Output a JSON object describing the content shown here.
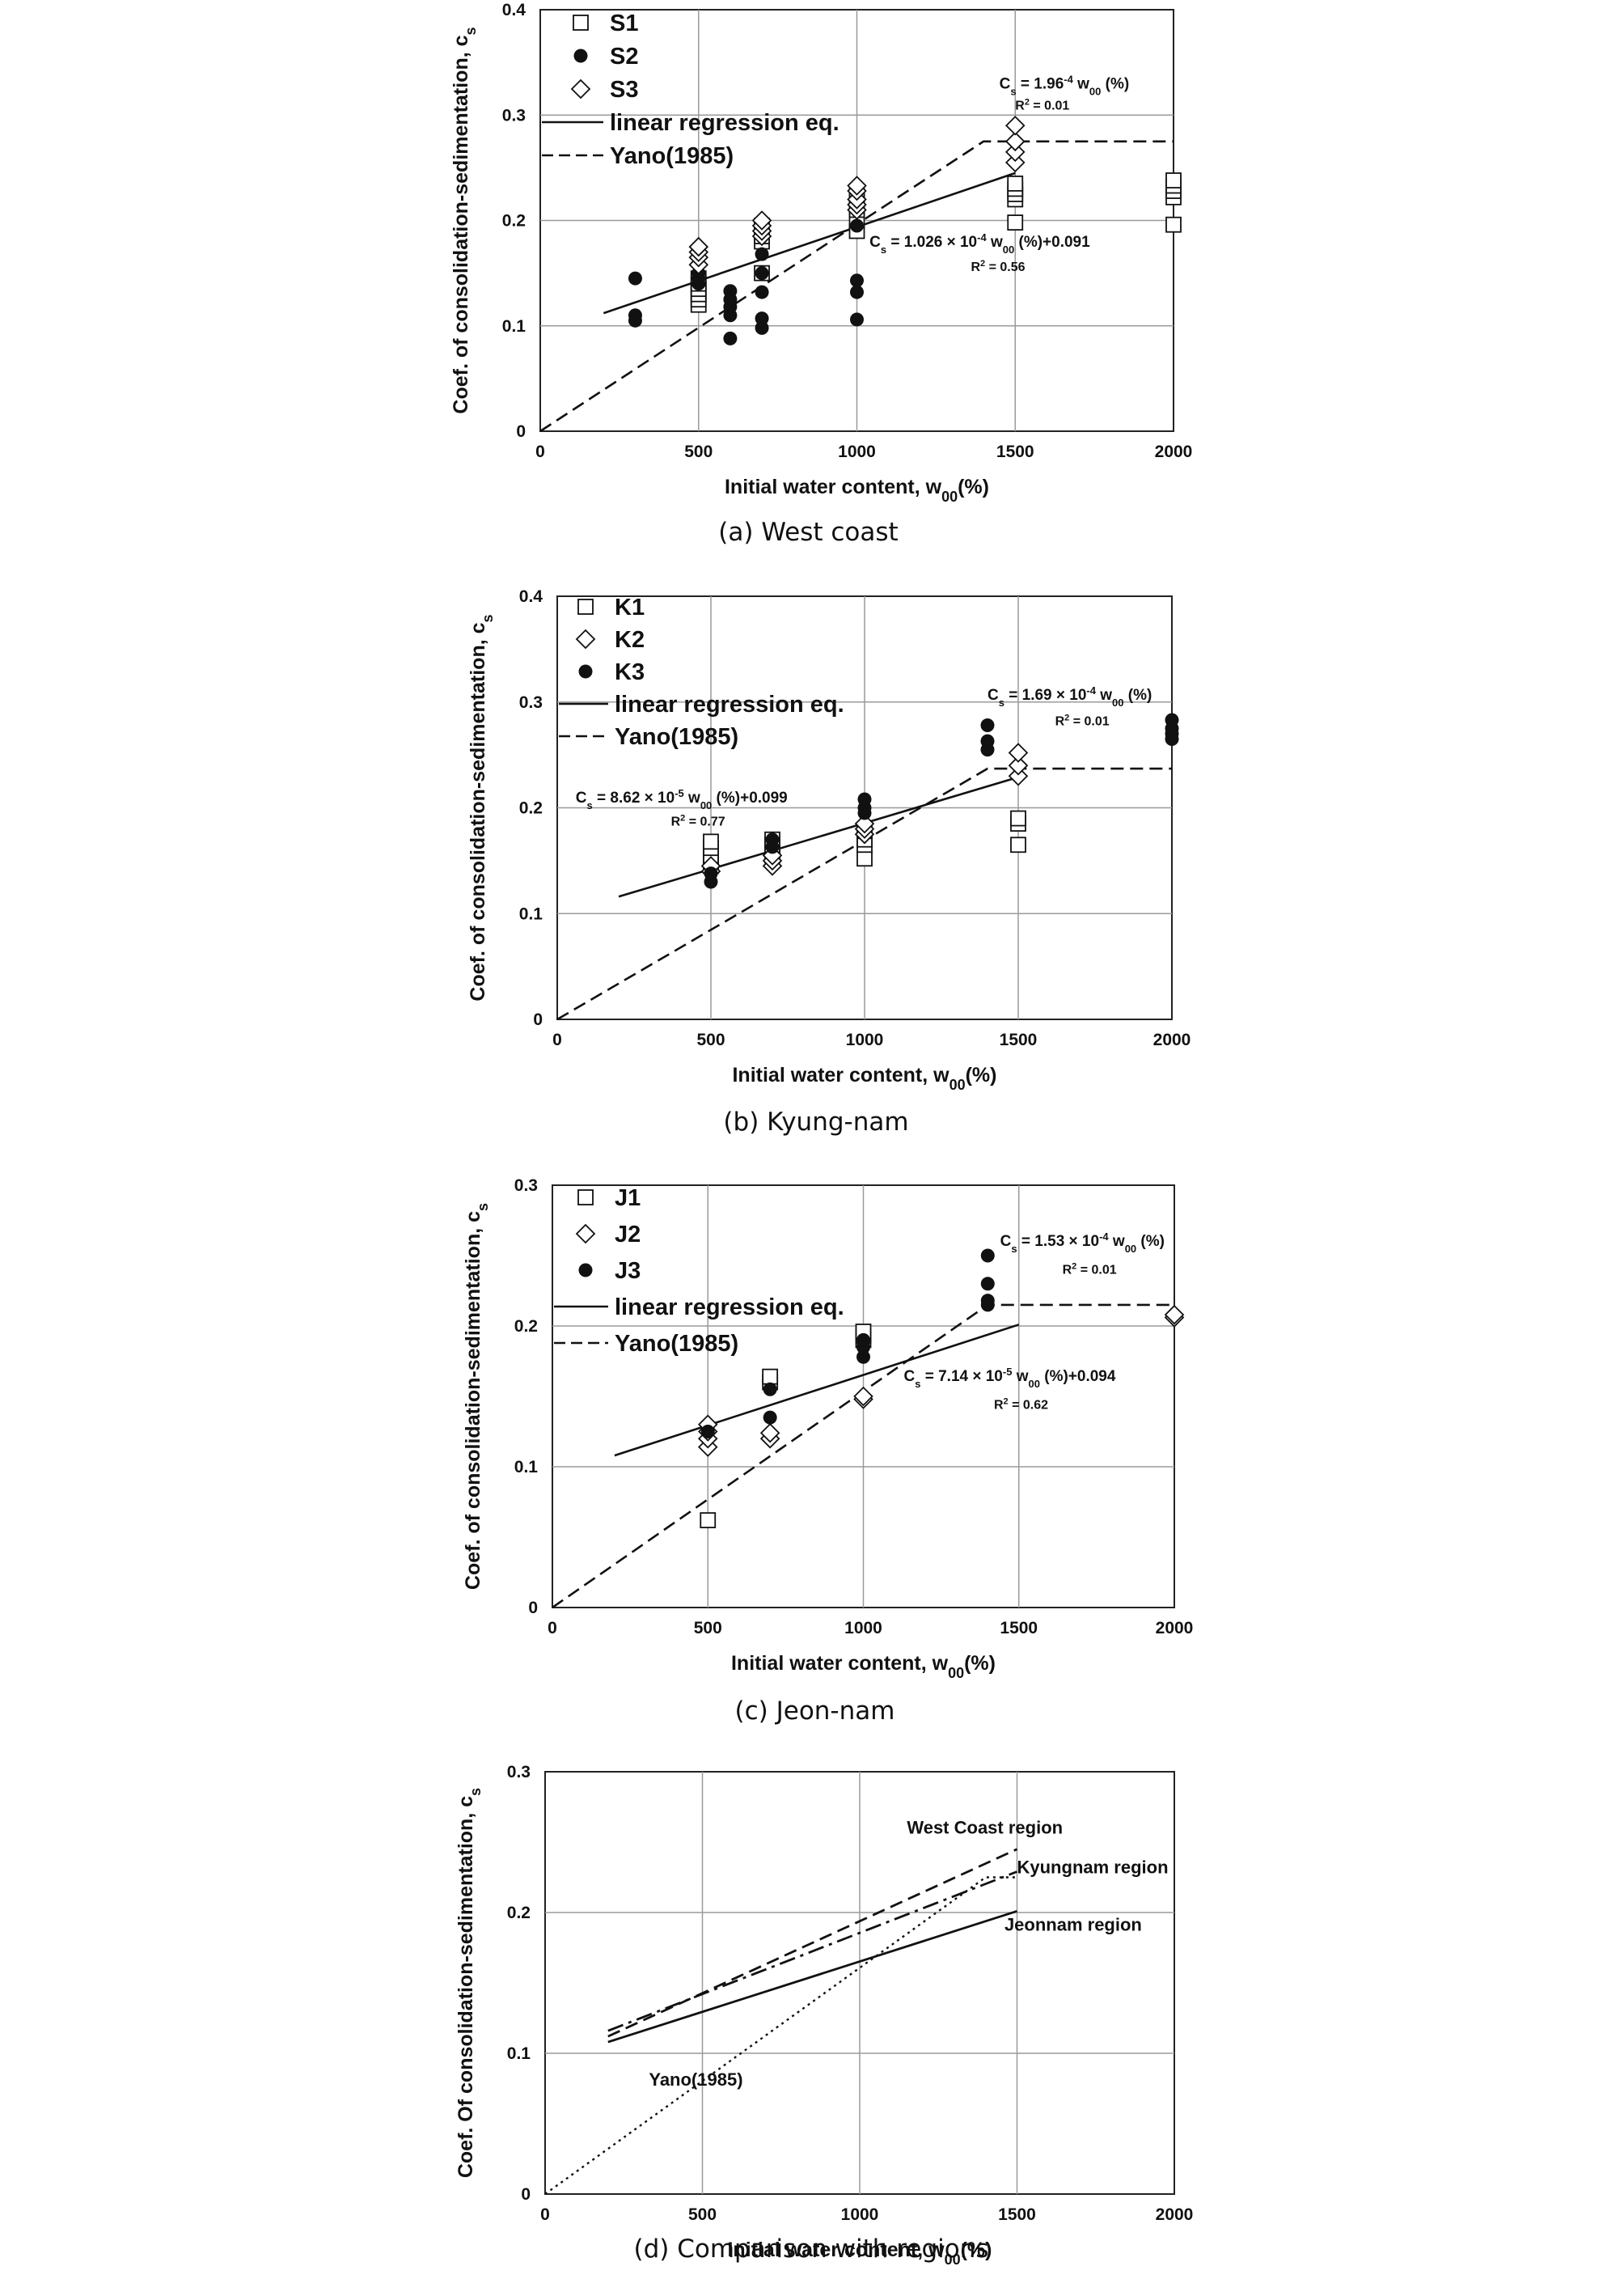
{
  "chart_data": [
    {
      "type": "scatter",
      "caption": "(a) West coast",
      "xlabel": "Initial water content, w",
      "xlabel_sub": "00",
      "xlabel_tail": "(%)",
      "ylabel": "Coef. of consolidation-sedimentation, c",
      "ylabel_sub": "s",
      "xlim": [
        0,
        2000
      ],
      "ylim": [
        0,
        0.4
      ],
      "xticks": [
        "0",
        "500",
        "1000",
        "1500",
        "2000"
      ],
      "yticks": [
        "0",
        "0.1",
        "0.2",
        "0.3",
        "0.4"
      ],
      "grid": true,
      "legend_position": "top-left",
      "legend": [
        {
          "label": "S1",
          "marker": "square"
        },
        {
          "label": "S2",
          "marker": "circle"
        },
        {
          "label": "S3",
          "marker": "diamond"
        },
        {
          "label": "linear regression eq.",
          "marker": "solid-line"
        },
        {
          "label": "Yano(1985)",
          "marker": "dashed-line"
        }
      ],
      "series": [
        {
          "name": "S1",
          "marker": "square",
          "points": [
            [
              500,
              0.12
            ],
            [
              500,
              0.125
            ],
            [
              500,
              0.13
            ],
            [
              500,
              0.135
            ],
            [
              500,
              0.14
            ],
            [
              500,
              0.145
            ],
            [
              700,
              0.15
            ],
            [
              700,
              0.18
            ],
            [
              700,
              0.185
            ],
            [
              700,
              0.19
            ],
            [
              700,
              0.195
            ],
            [
              1000,
              0.19
            ],
            [
              1000,
              0.2
            ],
            [
              1000,
              0.21
            ],
            [
              1000,
              0.22
            ],
            [
              1000,
              0.225
            ],
            [
              1500,
              0.198
            ],
            [
              1500,
              0.22
            ],
            [
              1500,
              0.225
            ],
            [
              1500,
              0.23
            ],
            [
              1500,
              0.235
            ],
            [
              2000,
              0.196
            ],
            [
              2000,
              0.222
            ],
            [
              2000,
              0.228
            ],
            [
              2000,
              0.233
            ],
            [
              2000,
              0.238
            ]
          ]
        },
        {
          "name": "S2",
          "marker": "circle",
          "points": [
            [
              300,
              0.145
            ],
            [
              300,
              0.11
            ],
            [
              300,
              0.105
            ],
            [
              500,
              0.15
            ],
            [
              500,
              0.145
            ],
            [
              500,
              0.14
            ],
            [
              600,
              0.133
            ],
            [
              600,
              0.125
            ],
            [
              600,
              0.118
            ],
            [
              600,
              0.11
            ],
            [
              600,
              0.088
            ],
            [
              700,
              0.168
            ],
            [
              700,
              0.15
            ],
            [
              700,
              0.132
            ],
            [
              700,
              0.107
            ],
            [
              700,
              0.098
            ],
            [
              1000,
              0.195
            ],
            [
              1000,
              0.143
            ],
            [
              1000,
              0.132
            ],
            [
              1000,
              0.106
            ]
          ]
        },
        {
          "name": "S3",
          "marker": "diamond",
          "points": [
            [
              500,
              0.158
            ],
            [
              500,
              0.165
            ],
            [
              500,
              0.17
            ],
            [
              500,
              0.175
            ],
            [
              700,
              0.185
            ],
            [
              700,
              0.19
            ],
            [
              700,
              0.195
            ],
            [
              700,
              0.2
            ],
            [
              1000,
              0.21
            ],
            [
              1000,
              0.215
            ],
            [
              1000,
              0.22
            ],
            [
              1000,
              0.228
            ],
            [
              1000,
              0.233
            ],
            [
              1500,
              0.255
            ],
            [
              1500,
              0.265
            ],
            [
              1500,
              0.275
            ],
            [
              1500,
              0.29
            ]
          ]
        }
      ],
      "lines": [
        {
          "name": "linear regression eq.",
          "style": "solid",
          "points": [
            [
              200,
              0.112
            ],
            [
              1500,
              0.245
            ]
          ]
        },
        {
          "name": "Yano(1985)",
          "style": "dashed",
          "points": [
            [
              0,
              0
            ],
            [
              1400,
              0.275
            ],
            [
              2000,
              0.275
            ]
          ]
        }
      ],
      "annotations": [
        {
          "text": "C",
          "sub": "s",
          "tail": " = 1.96",
          "sup": "-4",
          "tail2": " w",
          "sub2": "00",
          "tail3": " (%)",
          "x": 1450,
          "y": 0.325
        },
        {
          "text": "R",
          "sup": "2",
          "tail": " = 0.01",
          "x": 1500,
          "y": 0.305
        },
        {
          "text": "C",
          "sub": "s",
          "tail": " = 1.026 × 10",
          "sup": "-4",
          "tail2": " w",
          "sub2": "00",
          "tail3": " (%)+0.091",
          "x": 1040,
          "y": 0.175
        },
        {
          "text": "R",
          "sup": "2",
          "tail": " = 0.56",
          "x": 1360,
          "y": 0.152
        }
      ]
    },
    {
      "type": "scatter",
      "caption": "(b) Kyung-nam",
      "xlabel": "Initial water content, w",
      "xlabel_sub": "00",
      "xlabel_tail": "(%)",
      "ylabel": "Coef. of consolidation-sedimentation, c",
      "ylabel_sub": "s",
      "xlim": [
        0,
        2000
      ],
      "ylim": [
        0,
        0.4
      ],
      "xticks": [
        "0",
        "500",
        "1000",
        "1500",
        "2000"
      ],
      "yticks": [
        "0",
        "0.1",
        "0.2",
        "0.3",
        "0.4"
      ],
      "grid": true,
      "legend_position": "top-left",
      "legend": [
        {
          "label": "K1",
          "marker": "square"
        },
        {
          "label": "K2",
          "marker": "diamond"
        },
        {
          "label": "K3",
          "marker": "circle"
        },
        {
          "label": "linear regression eq.",
          "marker": "solid-line"
        },
        {
          "label": "Yano(1985)",
          "marker": "dashed-line"
        }
      ],
      "series": [
        {
          "name": "K1",
          "marker": "square",
          "points": [
            [
              500,
              0.145
            ],
            [
              500,
              0.15
            ],
            [
              500,
              0.155
            ],
            [
              500,
              0.162
            ],
            [
              500,
              0.168
            ],
            [
              700,
              0.155
            ],
            [
              700,
              0.16
            ],
            [
              700,
              0.165
            ],
            [
              700,
              0.17
            ],
            [
              1000,
              0.152
            ],
            [
              1000,
              0.165
            ],
            [
              1000,
              0.17
            ],
            [
              1000,
              0.178
            ],
            [
              1500,
              0.165
            ],
            [
              1500,
              0.185
            ],
            [
              1500,
              0.19
            ]
          ]
        },
        {
          "name": "K2",
          "marker": "diamond",
          "points": [
            [
              500,
              0.14
            ],
            [
              500,
              0.145
            ],
            [
              700,
              0.145
            ],
            [
              700,
              0.15
            ],
            [
              700,
              0.155
            ],
            [
              1000,
              0.175
            ],
            [
              1000,
              0.18
            ],
            [
              1000,
              0.185
            ],
            [
              1500,
              0.23
            ],
            [
              1500,
              0.24
            ],
            [
              1500,
              0.252
            ]
          ]
        },
        {
          "name": "K3",
          "marker": "circle",
          "points": [
            [
              500,
              0.13
            ],
            [
              500,
              0.138
            ],
            [
              700,
              0.163
            ],
            [
              700,
              0.17
            ],
            [
              1000,
              0.195
            ],
            [
              1000,
              0.2
            ],
            [
              1000,
              0.208
            ],
            [
              1400,
              0.255
            ],
            [
              1400,
              0.263
            ],
            [
              1400,
              0.278
            ],
            [
              2000,
              0.265
            ],
            [
              2000,
              0.27
            ],
            [
              2000,
              0.275
            ],
            [
              2000,
              0.283
            ]
          ]
        }
      ],
      "lines": [
        {
          "name": "linear regression eq.",
          "style": "solid",
          "points": [
            [
              200,
              0.116
            ],
            [
              1500,
              0.229
            ]
          ]
        },
        {
          "name": "Yano(1985)",
          "style": "dashed",
          "points": [
            [
              0,
              0
            ],
            [
              1400,
              0.237
            ],
            [
              2000,
              0.237
            ]
          ]
        }
      ],
      "annotations": [
        {
          "text": "C",
          "sub": "s",
          "tail": " = 1.69 × 10",
          "sup": "-4",
          "tail2": " w",
          "sub2": "00",
          "tail3": " (%)",
          "x": 1400,
          "y": 0.302
        },
        {
          "text": "R",
          "sup": "2",
          "tail": " = 0.01",
          "x": 1620,
          "y": 0.278
        },
        {
          "text": "C",
          "sub": "s",
          "tail": " = 8.62 × 10",
          "sup": "-5",
          "tail2": " w",
          "sub2": "00",
          "tail3": " (%)+0.099",
          "x": 60,
          "y": 0.205
        },
        {
          "text": "R",
          "sup": "2",
          "tail": " = 0.77",
          "x": 370,
          "y": 0.183
        }
      ]
    },
    {
      "type": "scatter",
      "caption": "(c) Jeon-nam",
      "xlabel": "Initial water content, w",
      "xlabel_sub": "00",
      "xlabel_tail": "(%)",
      "ylabel": "Coef. of consolidation-sedimentation, c",
      "ylabel_sub": "s",
      "xlim": [
        0,
        2000
      ],
      "ylim": [
        0,
        0.3
      ],
      "xticks": [
        "0",
        "500",
        "1000",
        "1500",
        "2000"
      ],
      "yticks": [
        "0",
        "0.1",
        "0.2",
        "0.3"
      ],
      "grid": true,
      "legend_position": "top-left",
      "legend": [
        {
          "label": "J1",
          "marker": "square"
        },
        {
          "label": "J2",
          "marker": "diamond"
        },
        {
          "label": "J3",
          "marker": "circle"
        },
        {
          "label": "linear regression eq.",
          "marker": "solid-line"
        },
        {
          "label": "Yano(1985)",
          "marker": "dashed-line"
        }
      ],
      "series": [
        {
          "name": "J1",
          "marker": "square",
          "points": [
            [
              500,
              0.062
            ],
            [
              700,
              0.16
            ],
            [
              700,
              0.164
            ],
            [
              1000,
              0.19
            ],
            [
              1000,
              0.193
            ],
            [
              1000,
              0.196
            ]
          ]
        },
        {
          "name": "J2",
          "marker": "diamond",
          "points": [
            [
              500,
              0.114
            ],
            [
              500,
              0.12
            ],
            [
              500,
              0.125
            ],
            [
              500,
              0.13
            ],
            [
              700,
              0.12
            ],
            [
              700,
              0.124
            ],
            [
              1000,
              0.148
            ],
            [
              1000,
              0.15
            ],
            [
              2000,
              0.206
            ],
            [
              2000,
              0.208
            ]
          ]
        },
        {
          "name": "J3",
          "marker": "circle",
          "points": [
            [
              500,
              0.125
            ],
            [
              700,
              0.135
            ],
            [
              700,
              0.155
            ],
            [
              1000,
              0.178
            ],
            [
              1000,
              0.185
            ],
            [
              1000,
              0.19
            ],
            [
              1400,
              0.215
            ],
            [
              1400,
              0.218
            ],
            [
              1400,
              0.23
            ],
            [
              1400,
              0.25
            ]
          ]
        }
      ],
      "lines": [
        {
          "name": "linear regression eq.",
          "style": "solid",
          "points": [
            [
              200,
              0.108
            ],
            [
              1500,
              0.201
            ]
          ]
        },
        {
          "name": "Yano(1985)",
          "style": "dashed",
          "points": [
            [
              0,
              0
            ],
            [
              1400,
              0.215
            ],
            [
              2000,
              0.215
            ]
          ]
        }
      ],
      "annotations": [
        {
          "text": "C",
          "sub": "s",
          "tail": " = 1.53 × 10",
          "sup": "-4",
          "tail2": " w",
          "sub2": "00",
          "tail3": " (%)",
          "x": 1440,
          "y": 0.257
        },
        {
          "text": "R",
          "sup": "2",
          "tail": " = 0.01",
          "x": 1640,
          "y": 0.237
        },
        {
          "text": "C",
          "sub": "s",
          "tail": " = 7.14 × 10",
          "sup": "-5",
          "tail2": " w",
          "sub2": "00",
          "tail3": " (%)+0.094",
          "x": 1130,
          "y": 0.161
        },
        {
          "text": "R",
          "sup": "2",
          "tail": " = 0.62",
          "x": 1420,
          "y": 0.141
        }
      ]
    },
    {
      "type": "line",
      "caption": "(d) Comparison with regions",
      "xlabel": "Initial water content, w",
      "xlabel_sub": "00",
      "xlabel_tail": "(%)",
      "ylabel": "Coef. Of consolidation-sedimentation, c",
      "ylabel_sub": "s",
      "xlim": [
        0,
        2000
      ],
      "ylim": [
        0,
        0.3
      ],
      "xticks": [
        "0",
        "500",
        "1000",
        "1500",
        "2000"
      ],
      "yticks": [
        "0",
        "0.1",
        "0.2",
        "0.3"
      ],
      "grid": true,
      "series": [
        {
          "name": "West Coast region",
          "style": "dashed",
          "points": [
            [
              200,
              0.112
            ],
            [
              1500,
              0.245
            ]
          ],
          "label_at": [
            1150,
            0.256
          ]
        },
        {
          "name": "Kyungnam region",
          "style": "dashdot",
          "points": [
            [
              200,
              0.116
            ],
            [
              1500,
              0.229
            ]
          ],
          "label_at": [
            1500,
            0.228
          ]
        },
        {
          "name": "Jeonnam region",
          "style": "solid",
          "points": [
            [
              200,
              0.108
            ],
            [
              1500,
              0.201
            ]
          ],
          "label_at": [
            1460,
            0.187
          ]
        },
        {
          "name": "Yano(1985)",
          "style": "dotted",
          "points": [
            [
              0,
              0
            ],
            [
              1400,
              0.225
            ],
            [
              1500,
              0.225
            ]
          ],
          "label_at": [
            330,
            0.077
          ]
        }
      ]
    }
  ]
}
